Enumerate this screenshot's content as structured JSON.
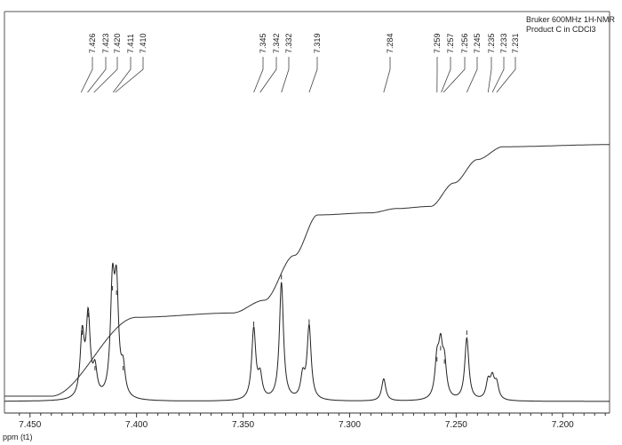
{
  "header": {
    "line1": "Bruker 600MHz 1H-NMR",
    "line2": "Product C in CDCl3"
  },
  "chart_data": {
    "type": "line",
    "title": "",
    "xlabel": "ppm (t1)",
    "ylabel": "",
    "xlim": [
      7.462,
      7.178
    ],
    "x_reversed": true,
    "x_ticks": [
      "7.450",
      "7.400",
      "7.350",
      "7.300",
      "7.250",
      "7.200"
    ],
    "x_tick_values": [
      7.45,
      7.4,
      7.35,
      7.3,
      7.25,
      7.2
    ],
    "peak_labels": [
      "7.426",
      "7.423",
      "7.420",
      "7.411",
      "7.410",
      "7.345",
      "7.342",
      "7.332",
      "7.319",
      "7.284",
      "7.259",
      "7.257",
      "7.256",
      "7.245",
      "7.235",
      "7.233",
      "7.231"
    ],
    "series": [
      {
        "type": "spectrum",
        "peaks": [
          {
            "ppm": 7.4255,
            "height": 0.28
          },
          {
            "ppm": 7.4227,
            "height": 0.36
          },
          {
            "ppm": 7.4195,
            "height": 0.12
          },
          {
            "ppm": 7.4113,
            "height": 0.48
          },
          {
            "ppm": 7.4094,
            "height": 0.46
          },
          {
            "ppm": 7.4063,
            "height": 0.12
          },
          {
            "ppm": 7.345,
            "height": 0.32
          },
          {
            "ppm": 7.342,
            "height": 0.1
          },
          {
            "ppm": 7.332,
            "height": 0.53
          },
          {
            "ppm": 7.322,
            "height": 0.1
          },
          {
            "ppm": 7.319,
            "height": 0.33
          },
          {
            "ppm": 7.284,
            "height": 0.1
          },
          {
            "ppm": 7.259,
            "height": 0.16
          },
          {
            "ppm": 7.2573,
            "height": 0.21
          },
          {
            "ppm": 7.2555,
            "height": 0.15
          },
          {
            "ppm": 7.245,
            "height": 0.28
          },
          {
            "ppm": 7.235,
            "height": 0.08
          },
          {
            "ppm": 7.233,
            "height": 0.09
          },
          {
            "ppm": 7.231,
            "height": 0.07
          }
        ]
      },
      {
        "type": "integral",
        "levels": [
          {
            "ppm": 7.44,
            "level": 0.0
          },
          {
            "ppm": 7.4,
            "level": 0.37
          },
          {
            "ppm": 7.355,
            "level": 0.39
          },
          {
            "ppm": 7.34,
            "level": 0.45
          },
          {
            "ppm": 7.326,
            "level": 0.66
          },
          {
            "ppm": 7.315,
            "level": 0.85
          },
          {
            "ppm": 7.29,
            "level": 0.86
          },
          {
            "ppm": 7.278,
            "level": 0.88
          },
          {
            "ppm": 7.262,
            "level": 0.89
          },
          {
            "ppm": 7.251,
            "level": 1.0
          },
          {
            "ppm": 7.24,
            "level": 1.11
          },
          {
            "ppm": 7.228,
            "level": 1.17
          },
          {
            "ppm": 7.178,
            "level": 1.18
          }
        ]
      }
    ],
    "grid": false,
    "legend": "none"
  }
}
